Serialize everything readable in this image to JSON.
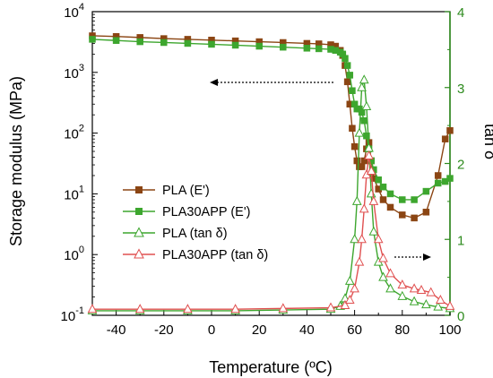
{
  "chart_data": {
    "type": "line",
    "xlabel": "Temperature (ºC)",
    "ylabel_left": "Storage modulus (MPa)",
    "ylabel_right": "tan δ",
    "xlim": [
      -50,
      100
    ],
    "ylim_left_log": [
      0.1,
      10000
    ],
    "ylim_right": [
      0,
      4
    ],
    "x_ticks": [
      "-40",
      "-20",
      "0",
      "20",
      "40",
      "60",
      "80",
      "100"
    ],
    "x_tick_values": [
      -40,
      -20,
      0,
      20,
      40,
      60,
      80,
      100
    ],
    "y_left_ticks": [
      {
        "base": "10",
        "exp": "-1",
        "value": 0.1
      },
      {
        "base": "10",
        "exp": "0",
        "value": 1
      },
      {
        "base": "10",
        "exp": "1",
        "value": 10
      },
      {
        "base": "10",
        "exp": "2",
        "value": 100
      },
      {
        "base": "10",
        "exp": "3",
        "value": 1000
      },
      {
        "base": "10",
        "exp": "4",
        "value": 10000
      }
    ],
    "y_right_ticks": [
      "0",
      "1",
      "2",
      "3",
      "4"
    ],
    "y_right_tick_values": [
      0,
      1,
      2,
      3,
      4
    ],
    "right_axis_color": "#2e8b1e",
    "series": [
      {
        "name": "PLA (E')",
        "axis": "left",
        "marker": "square",
        "color": "#8b4513",
        "x": [
          -50,
          -40,
          -30,
          -20,
          -10,
          0,
          10,
          20,
          30,
          40,
          45,
          50,
          52,
          54,
          55,
          56,
          57,
          58,
          59,
          60,
          61,
          62,
          63,
          64,
          65,
          66,
          67,
          68,
          70,
          72,
          75,
          80,
          85,
          90,
          95,
          98,
          100
        ],
        "y": [
          4000,
          3900,
          3750,
          3600,
          3500,
          3400,
          3300,
          3200,
          3100,
          3000,
          2950,
          2850,
          2700,
          2300,
          1900,
          1300,
          700,
          300,
          120,
          60,
          35,
          28,
          28,
          35,
          55,
          70,
          35,
          18,
          12,
          8,
          6,
          4.5,
          4,
          5,
          20,
          80,
          110
        ]
      },
      {
        "name": "PLA30APP (E')",
        "axis": "left",
        "marker": "square",
        "color": "#3da62e",
        "x": [
          -50,
          -40,
          -30,
          -20,
          -10,
          0,
          10,
          20,
          30,
          40,
          45,
          50,
          52,
          54,
          55,
          56,
          57,
          58,
          59,
          60,
          61,
          62,
          63,
          64,
          65,
          66,
          67,
          68,
          70,
          72,
          75,
          80,
          85,
          90,
          95,
          98,
          100
        ],
        "y": [
          3500,
          3350,
          3200,
          3100,
          3000,
          2900,
          2800,
          2700,
          2600,
          2500,
          2450,
          2400,
          2300,
          2150,
          2000,
          1700,
          1300,
          900,
          500,
          300,
          250,
          250,
          220,
          160,
          90,
          55,
          35,
          25,
          17,
          13,
          10,
          8,
          8,
          11,
          15,
          16,
          18
        ]
      },
      {
        "name": "PLA (tan δ)",
        "axis": "right",
        "marker": "triangle",
        "color": "#3da62e",
        "x": [
          -50,
          -30,
          -10,
          10,
          30,
          50,
          54,
          56,
          58,
          60,
          61,
          62,
          63,
          64,
          65,
          66,
          67,
          68,
          70,
          72,
          75,
          80,
          85,
          90,
          95,
          100
        ],
        "y": [
          0.06,
          0.06,
          0.06,
          0.06,
          0.07,
          0.08,
          0.12,
          0.22,
          0.45,
          1.0,
          1.5,
          2.4,
          3.0,
          3.1,
          2.75,
          2.2,
          1.6,
          1.1,
          0.7,
          0.5,
          0.35,
          0.25,
          0.18,
          0.14,
          0.11,
          0.09
        ]
      },
      {
        "name": "PLA30APP (tan δ)",
        "axis": "right",
        "marker": "triangle",
        "color": "#e05050",
        "x": [
          -50,
          -30,
          -10,
          10,
          30,
          50,
          56,
          58,
          60,
          62,
          63,
          64,
          65,
          66,
          67,
          68,
          70,
          72,
          75,
          80,
          85,
          88,
          92,
          96,
          100
        ],
        "y": [
          0.08,
          0.08,
          0.08,
          0.08,
          0.09,
          0.1,
          0.13,
          0.2,
          0.35,
          0.7,
          1.0,
          1.4,
          1.85,
          2.1,
          1.9,
          1.5,
          1.0,
          0.75,
          0.55,
          0.4,
          0.35,
          0.33,
          0.3,
          0.2,
          0.12
        ]
      }
    ],
    "annotations": [
      {
        "type": "arrow",
        "direction": "left",
        "target_axis": "left"
      },
      {
        "type": "arrow",
        "direction": "right",
        "target_axis": "right"
      }
    ],
    "legend": "left-center",
    "grid": false
  }
}
